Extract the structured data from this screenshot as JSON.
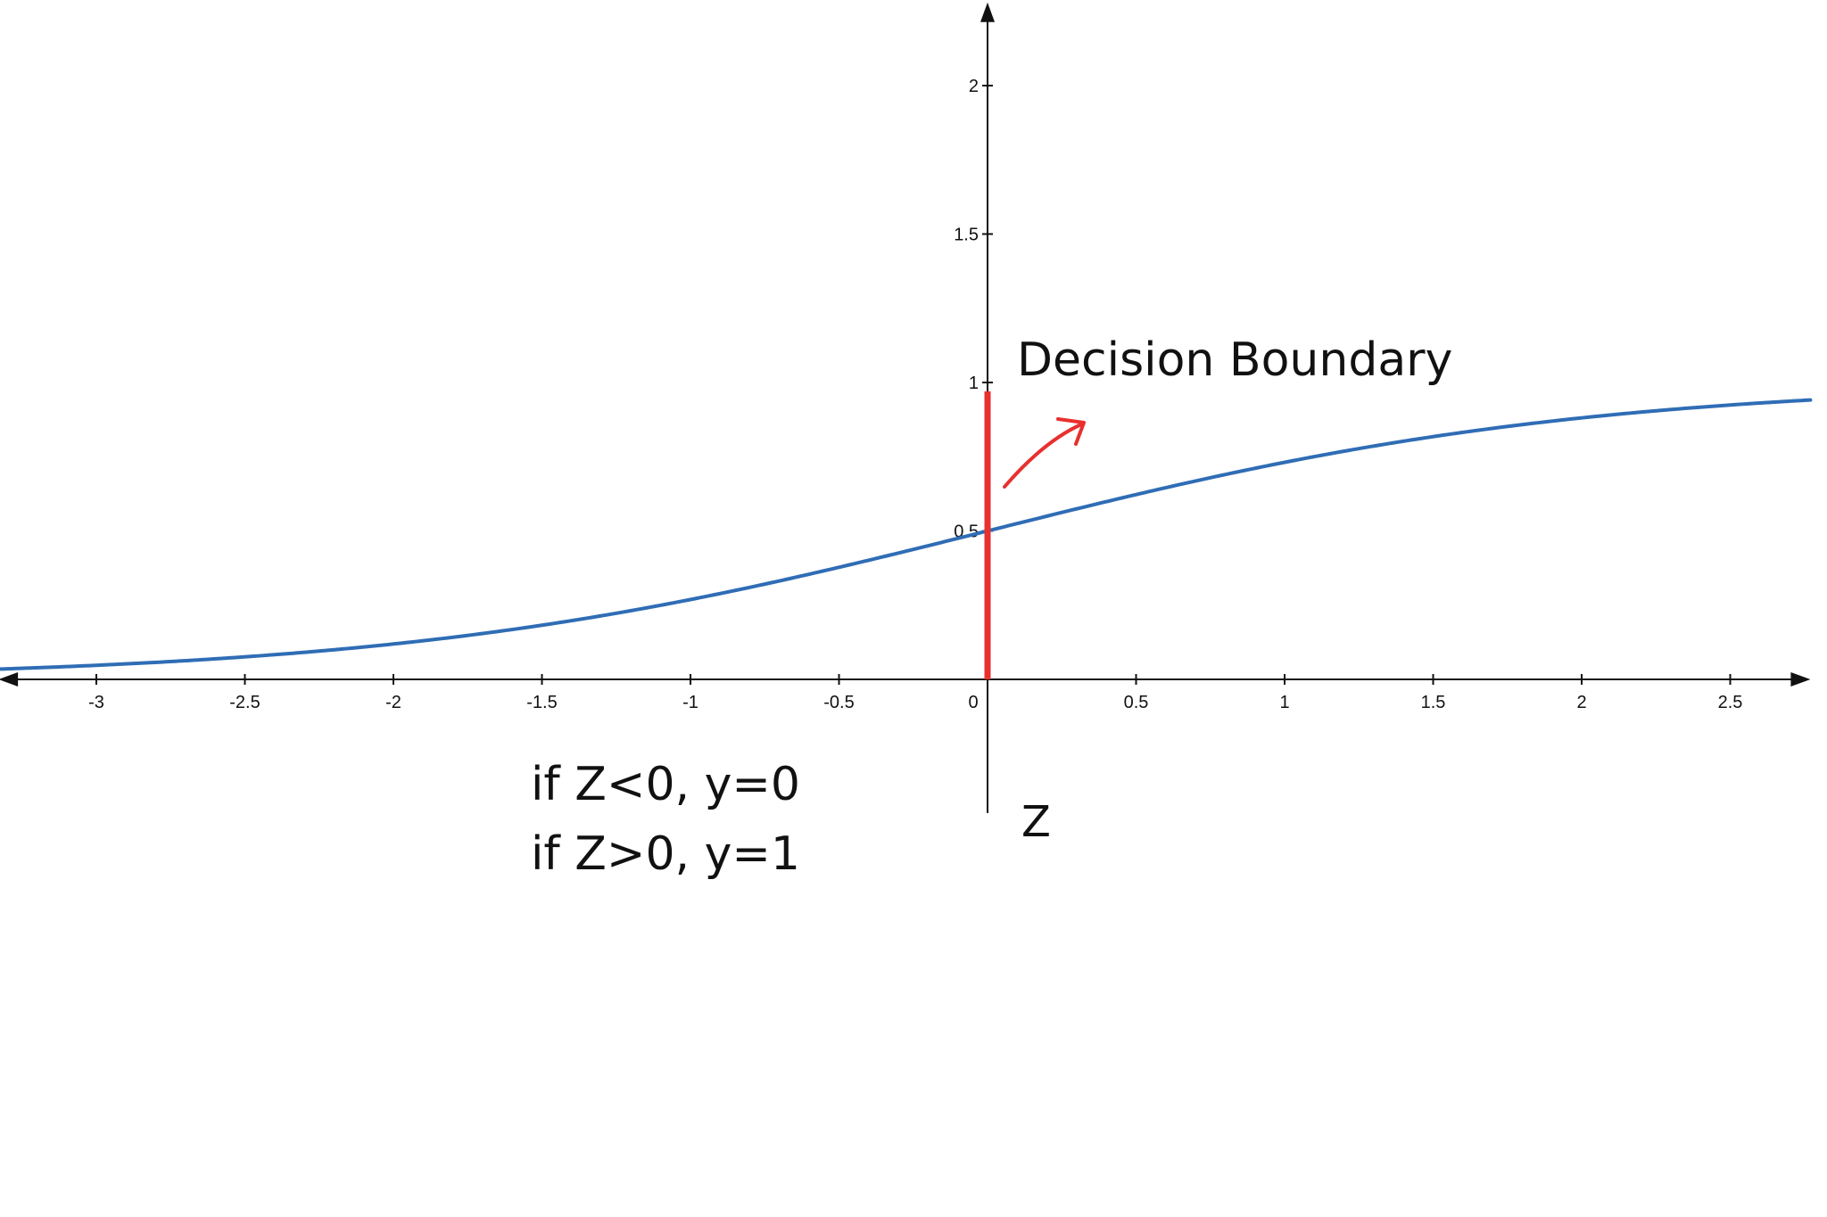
{
  "chart_data": {
    "type": "line",
    "title": "",
    "xlabel": "Z",
    "ylabel": "",
    "xlim": [
      -3.33,
      2.77
    ],
    "ylim": [
      -0.45,
      2.28
    ],
    "x_ticks": [
      -3,
      -2.5,
      -2,
      -1.5,
      -1,
      -0.5,
      0,
      0.5,
      1,
      1.5,
      2,
      2.5
    ],
    "x_tick_labels": [
      "-3",
      "-2.5",
      "-2",
      "-1.5",
      "-1",
      "-0.5",
      "0",
      "0.5",
      "1",
      "1.5",
      "2",
      "2.5"
    ],
    "y_ticks": [
      0.5,
      1,
      1.5,
      2
    ],
    "y_tick_labels": [
      "0.5",
      "1",
      "1.5",
      "2"
    ],
    "grid": false,
    "series": [
      {
        "function": "sigmoid",
        "color": "#2f6db5",
        "x": [
          -3.33,
          -3,
          -2.5,
          -2,
          -1.5,
          -1,
          -0.5,
          0,
          0.5,
          1,
          1.5,
          2,
          2.5,
          2.77
        ],
        "y": [
          0.035,
          0.047,
          0.076,
          0.119,
          0.182,
          0.269,
          0.378,
          0.5,
          0.622,
          0.731,
          0.818,
          0.881,
          0.924,
          0.941
        ]
      }
    ],
    "decision_boundary": {
      "label": "Decision Boundary",
      "x": 0,
      "y_range": [
        0,
        0.97
      ],
      "color": "#e8302f"
    },
    "annotations": {
      "rule_lines": [
        "if Z<0, y=0",
        "if Z>0, y=1"
      ],
      "arrow_color": "#e8302f"
    }
  }
}
